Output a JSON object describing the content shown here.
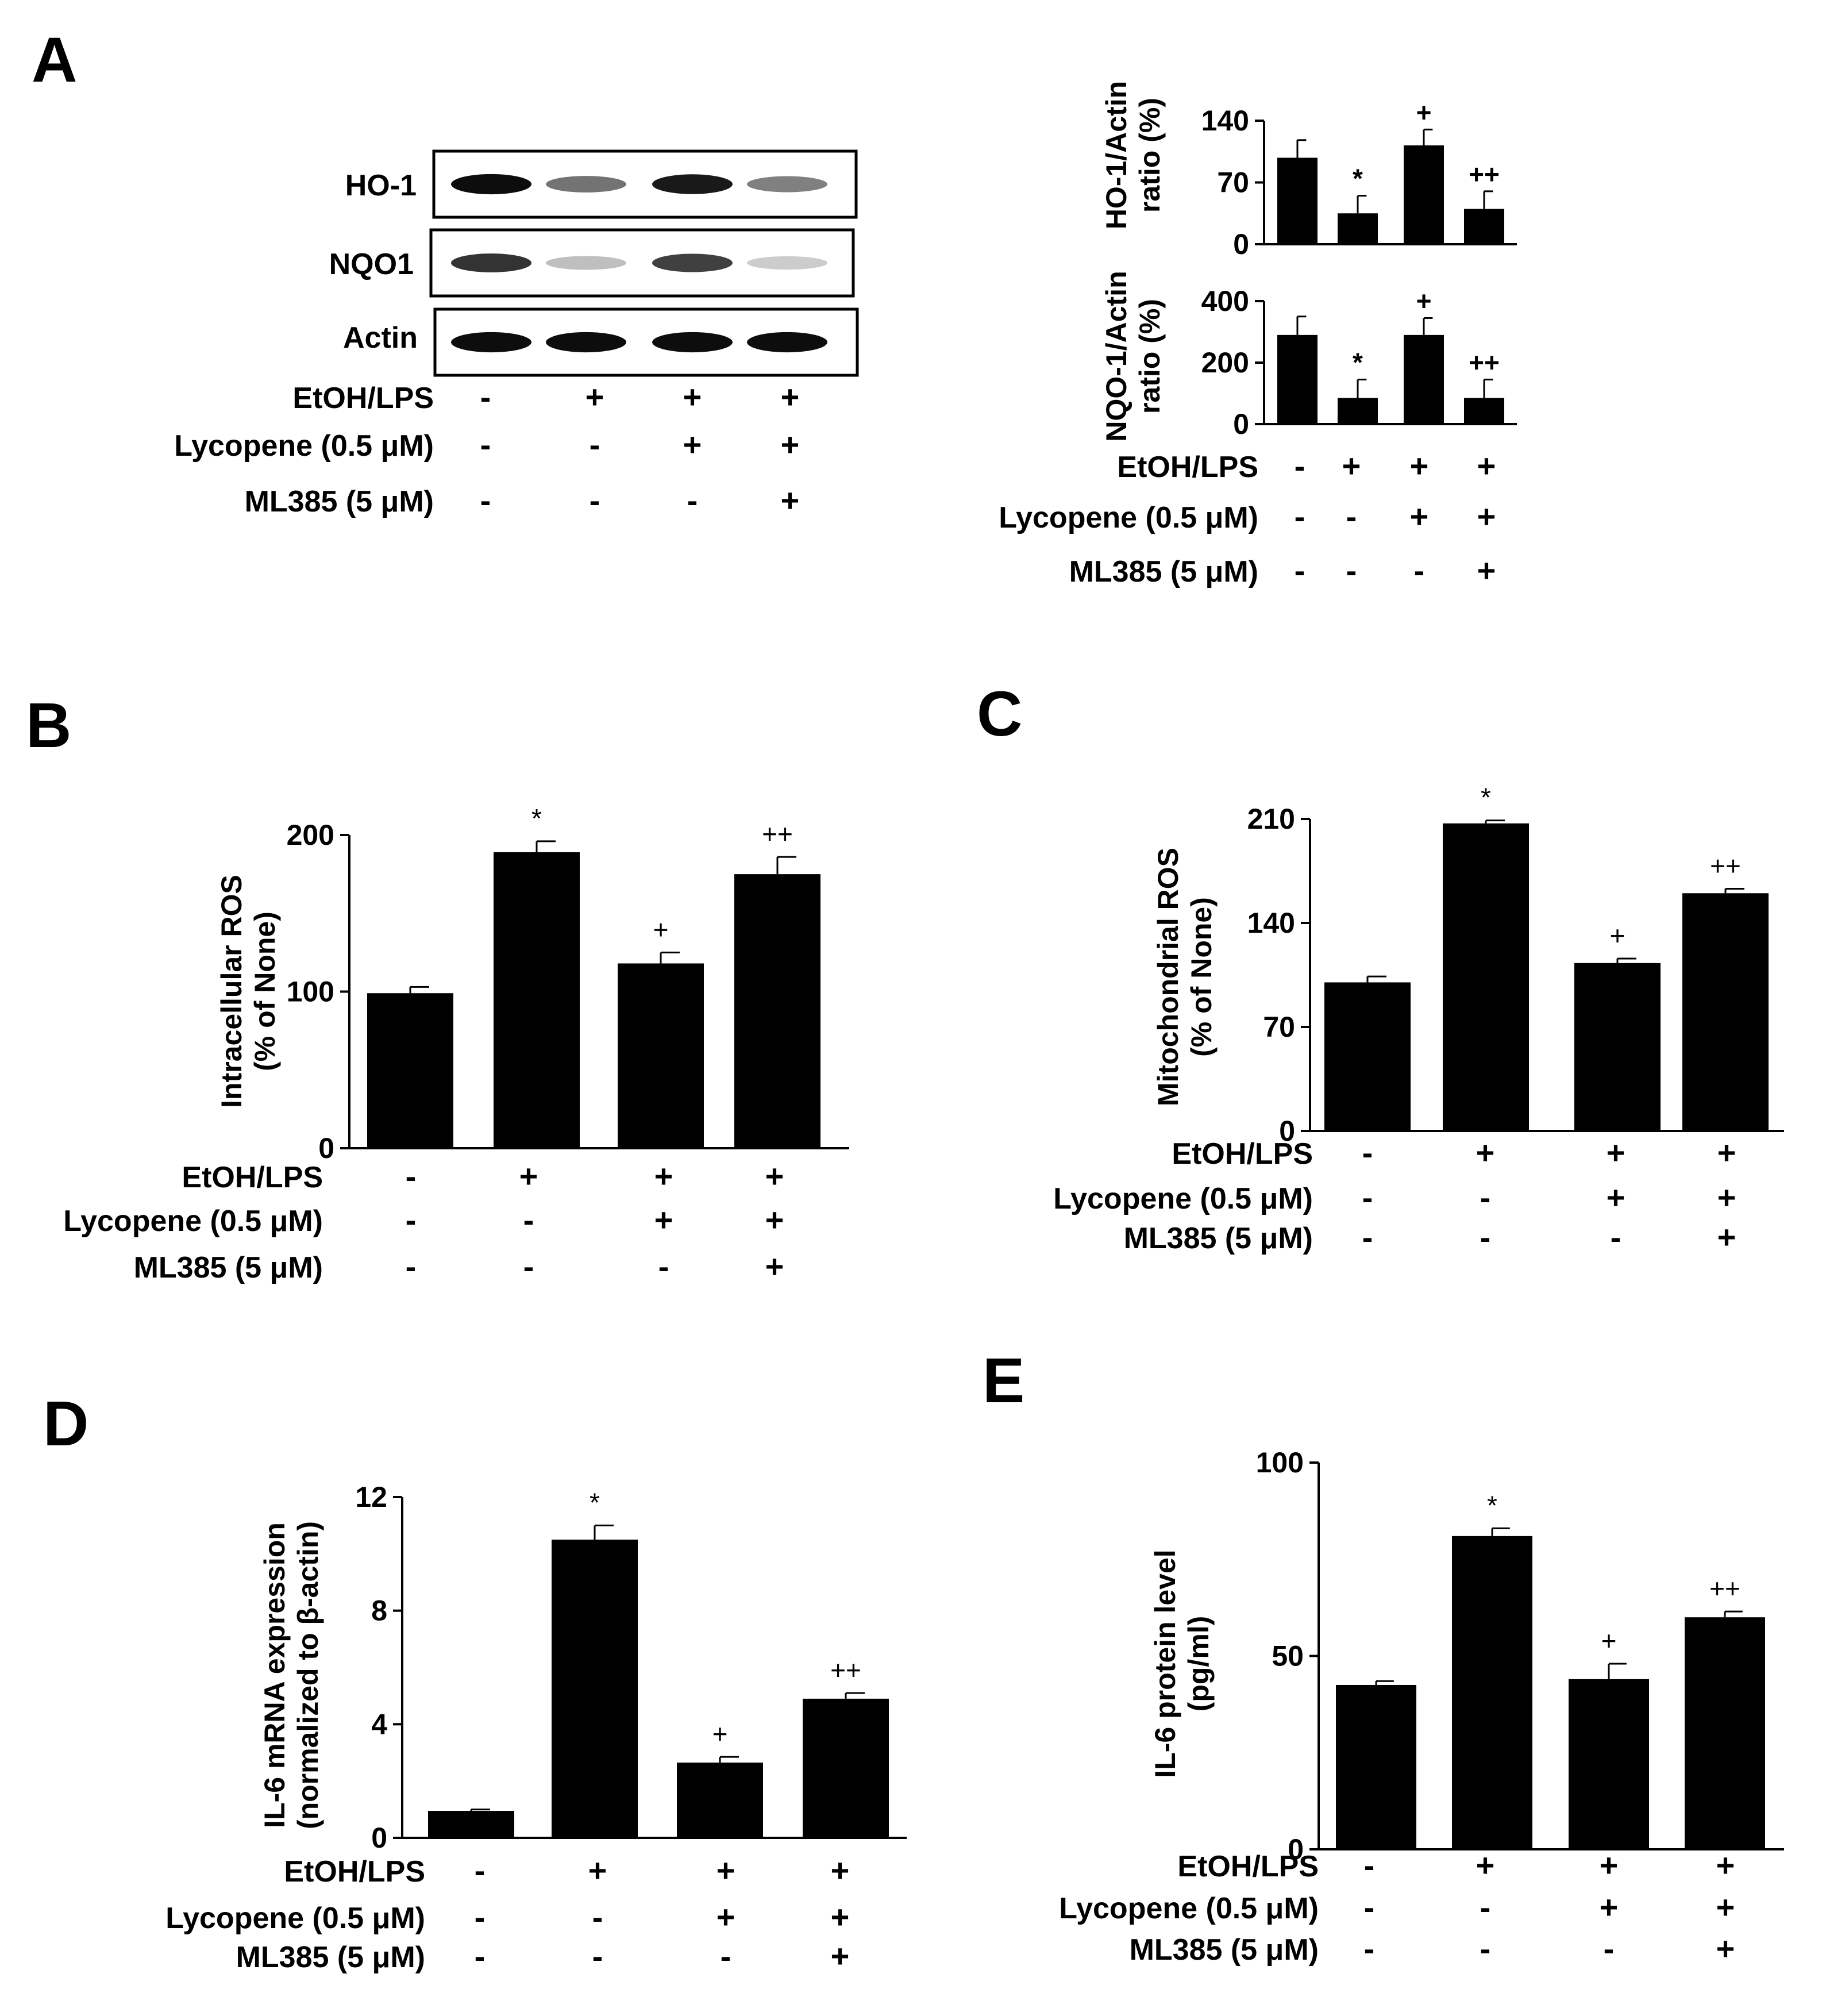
{
  "figure": {
    "panels": {
      "A": "A",
      "B": "B",
      "C": "C",
      "D": "D",
      "E": "E"
    }
  },
  "treatments": {
    "rows": [
      {
        "label": "EtOH/LPS",
        "signs": [
          "-",
          "+",
          "+",
          "+"
        ]
      },
      {
        "label": "Lycopene (0.5 μM)",
        "signs": [
          "-",
          "-",
          "+",
          "+"
        ]
      },
      {
        "label": "ML385 (5 μM)",
        "signs": [
          "-",
          "-",
          "-",
          "+"
        ]
      }
    ],
    "label_b_ml385": "ML385 (5 μM)"
  },
  "western_blot": {
    "rows": [
      {
        "label": "HO-1",
        "intensity": [
          0.95,
          0.55,
          0.9,
          0.5
        ]
      },
      {
        "label": "NQO1",
        "intensity": [
          0.8,
          0.25,
          0.75,
          0.2
        ]
      },
      {
        "label": "Actin",
        "intensity": [
          0.95,
          0.95,
          0.95,
          0.95
        ]
      }
    ]
  },
  "chart_data": [
    {
      "id": "A_ho1",
      "type": "bar",
      "categories": [
        "1",
        "2",
        "3",
        "4"
      ],
      "values": [
        98,
        35,
        112,
        40
      ],
      "errors": [
        20,
        20,
        18,
        20
      ],
      "annotations": [
        "",
        "*",
        "+",
        "++"
      ],
      "ylabel": "HO-1/Actin ratio (%)",
      "ylim": [
        0,
        140
      ],
      "yticks": [
        0,
        70,
        140
      ]
    },
    {
      "id": "A_nqo1",
      "type": "bar",
      "categories": [
        "1",
        "2",
        "3",
        "4"
      ],
      "values": [
        290,
        85,
        290,
        85
      ],
      "errors": [
        60,
        60,
        55,
        60
      ],
      "annotations": [
        "",
        "*",
        "+",
        "++"
      ],
      "ylabel": "NQO-1/Actin ratio (%)",
      "ylim": [
        0,
        400
      ],
      "yticks": [
        0,
        200,
        400
      ]
    },
    {
      "id": "B",
      "type": "bar",
      "categories": [
        "1",
        "2",
        "3",
        "4"
      ],
      "values": [
        99,
        189,
        118,
        175
      ],
      "errors": [
        4,
        7,
        7,
        11
      ],
      "annotations": [
        "",
        "*",
        "+",
        "++"
      ],
      "ylabel": "Intracellular ROS (% of None)",
      "ylim": [
        0,
        200
      ],
      "yticks": [
        0,
        100,
        200
      ]
    },
    {
      "id": "C",
      "type": "bar",
      "categories": [
        "1",
        "2",
        "3",
        "4"
      ],
      "values": [
        100,
        207,
        113,
        160
      ],
      "errors": [
        4,
        2,
        3,
        3
      ],
      "annotations": [
        "",
        "*",
        "+",
        "++"
      ],
      "ylabel": "Mitochondrial ROS (% of None)",
      "ylim": [
        0,
        210
      ],
      "yticks": [
        0,
        70,
        140,
        210
      ]
    },
    {
      "id": "D",
      "type": "bar",
      "categories": [
        "1",
        "2",
        "3",
        "4"
      ],
      "values": [
        0.95,
        10.5,
        2.65,
        4.9
      ],
      "errors": [
        0.05,
        0.5,
        0.2,
        0.2
      ],
      "annotations": [
        "",
        "*",
        "+",
        "++"
      ],
      "ylabel": "IL-6 mRNA expression (normalized to β-actin)",
      "ylim": [
        0,
        12
      ],
      "yticks": [
        0,
        4,
        8,
        12
      ]
    },
    {
      "id": "E",
      "type": "bar",
      "categories": [
        "1",
        "2",
        "3",
        "4"
      ],
      "values": [
        42.5,
        81,
        44,
        60
      ],
      "errors": [
        1,
        2,
        4,
        1.5
      ],
      "annotations": [
        "",
        "*",
        "+",
        "++"
      ],
      "ylabel": "IL-6 protein level (pg/ml)",
      "ylim": [
        0,
        100
      ],
      "yticks": [
        0,
        50,
        100
      ]
    }
  ]
}
